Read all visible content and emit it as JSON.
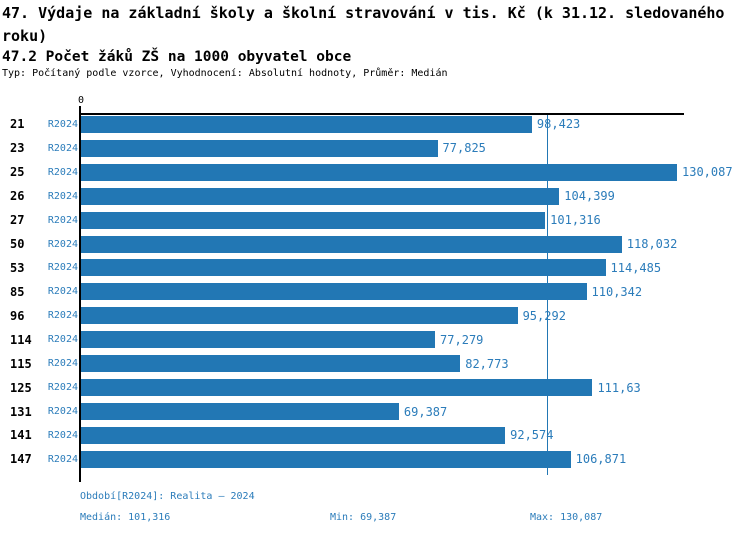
{
  "header": {
    "title": "47. Výdaje na základní školy a školní stravování v tis. Kč (k 31.12. sledovaného roku)",
    "subtitle": "47.2 Počet žáků ZŠ na 1000 obyvatel obce",
    "meta": "Typ: Počítaný podle vzorce, Vyhodnocení: Absolutní hodnoty, Průměr: Medián"
  },
  "chart_data": {
    "type": "bar",
    "orientation": "horizontal",
    "title": "47.2 Počet žáků ZŠ na 1000 obyvatel obce",
    "xlabel": "",
    "ylabel": "",
    "axis_zero_label": "0",
    "xmax": 130.087,
    "median_value": 101.316,
    "series_label": "R2024",
    "legend_position": "none",
    "grid": false,
    "categories": [
      "21",
      "23",
      "25",
      "26",
      "27",
      "50",
      "53",
      "85",
      "96",
      "114",
      "115",
      "125",
      "131",
      "141",
      "147"
    ],
    "values": [
      98.423,
      77.825,
      130.087,
      104.399,
      101.316,
      118.032,
      114.485,
      110.342,
      95.292,
      77.279,
      82.773,
      111.63,
      69.387,
      92.574,
      106.871
    ],
    "rows": [
      {
        "category": "21",
        "series": "R2024",
        "value": 98.423,
        "label": "98,423"
      },
      {
        "category": "23",
        "series": "R2024",
        "value": 77.825,
        "label": "77,825"
      },
      {
        "category": "25",
        "series": "R2024",
        "value": 130.087,
        "label": "130,087"
      },
      {
        "category": "26",
        "series": "R2024",
        "value": 104.399,
        "label": "104,399"
      },
      {
        "category": "27",
        "series": "R2024",
        "value": 101.316,
        "label": "101,316"
      },
      {
        "category": "50",
        "series": "R2024",
        "value": 118.032,
        "label": "118,032"
      },
      {
        "category": "53",
        "series": "R2024",
        "value": 114.485,
        "label": "114,485"
      },
      {
        "category": "85",
        "series": "R2024",
        "value": 110.342,
        "label": "110,342"
      },
      {
        "category": "96",
        "series": "R2024",
        "value": 95.292,
        "label": "95,292"
      },
      {
        "category": "114",
        "series": "R2024",
        "value": 77.279,
        "label": "77,279"
      },
      {
        "category": "115",
        "series": "R2024",
        "value": 82.773,
        "label": "82,773"
      },
      {
        "category": "125",
        "series": "R2024",
        "value": 111.63,
        "label": "111,63"
      },
      {
        "category": "131",
        "series": "R2024",
        "value": 69.387,
        "label": "69,387"
      },
      {
        "category": "141",
        "series": "R2024",
        "value": 92.574,
        "label": "92,574"
      },
      {
        "category": "147",
        "series": "R2024",
        "value": 106.871,
        "label": "106,871"
      }
    ]
  },
  "footer": {
    "period": "Období[R2024]: Realita – 2024",
    "median": "Medián: 101,316",
    "min": "Min: 69,387",
    "max": "Max: 130,087"
  },
  "colors": {
    "bar": "#2277b4",
    "blue_text": "#2b7cba",
    "axis": "#000000"
  }
}
